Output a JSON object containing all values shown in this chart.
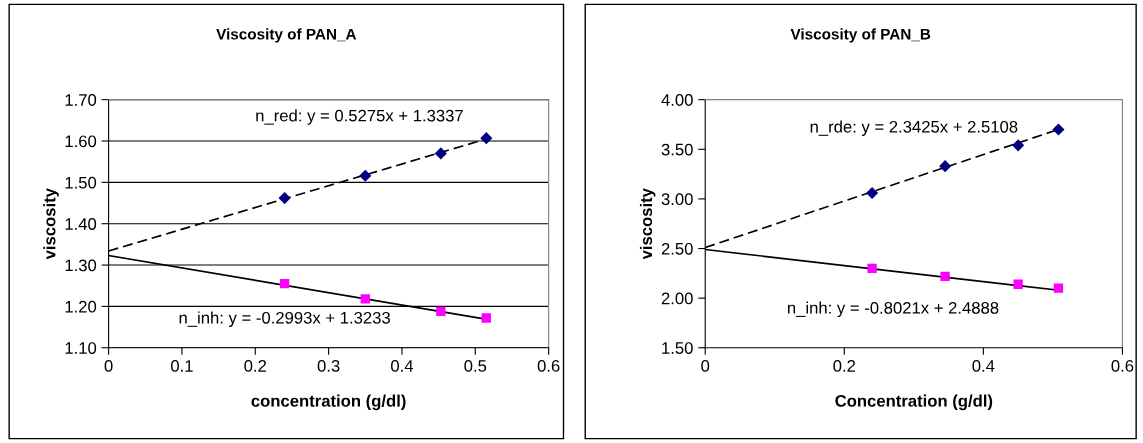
{
  "chart_data": [
    {
      "type": "scatter",
      "title": "Viscosity of PAN_A",
      "xlabel": "concentration (g/dl)",
      "ylabel": "viscosity",
      "xlim": [
        0,
        0.6
      ],
      "xticks": [
        0,
        0.1,
        0.2,
        0.3,
        0.4,
        0.5,
        0.6
      ],
      "ylim": [
        1.1,
        1.7
      ],
      "yticks": [
        {
          "value": 1.1,
          "label": "1.10"
        },
        {
          "value": 1.2,
          "label": "1.20"
        },
        {
          "value": 1.3,
          "label": "1.30"
        },
        {
          "value": 1.4,
          "label": "1.40"
        },
        {
          "value": 1.5,
          "label": "1.50"
        },
        {
          "value": 1.6,
          "label": "1.60"
        },
        {
          "value": 1.7,
          "label": "1.70"
        }
      ],
      "grid": "y",
      "series": [
        {
          "color": "#000080",
          "marker": "diamond",
          "x": [
            0.24,
            0.35,
            0.453,
            0.515
          ],
          "values": [
            1.462,
            1.516,
            1.57,
            1.607
          ]
        },
        {
          "color": "#ff00ff",
          "marker": "square",
          "x": [
            0.24,
            0.35,
            0.453,
            0.515
          ],
          "values": [
            1.255,
            1.218,
            1.188,
            1.172
          ]
        },
        {
          "type": "line",
          "color": "#000000",
          "line_style": "dashed",
          "x": [
            0,
            0.515
          ],
          "values": [
            1.334,
            1.605
          ]
        },
        {
          "type": "line",
          "color": "#000000",
          "line_style": "solid",
          "x": [
            0,
            0.515
          ],
          "values": [
            1.323,
            1.169
          ]
        }
      ],
      "annotations": [
        "n_red: y = 0.5275x + 1.3337",
        "n_inh: y = -0.2993x + 1.3233"
      ]
    },
    {
      "type": "scatter",
      "title": "Viscosity of PAN_B",
      "xlabel": "Concentration (g/dl)",
      "ylabel": "viscosity",
      "xlim": [
        0,
        0.6
      ],
      "xticks": [
        0,
        0.2,
        0.4,
        0.6
      ],
      "ylim": [
        1.5,
        4.0
      ],
      "yticks": [
        {
          "value": 1.5,
          "label": "1.50"
        },
        {
          "value": 2.0,
          "label": "2.00"
        },
        {
          "value": 2.5,
          "label": "2.50"
        },
        {
          "value": 3.0,
          "label": "3.00"
        },
        {
          "value": 3.5,
          "label": "3.50"
        },
        {
          "value": 4.0,
          "label": "4.00"
        }
      ],
      "grid": false,
      "series": [
        {
          "color": "#000080",
          "marker": "diamond",
          "x": [
            0.24,
            0.345,
            0.45,
            0.508
          ],
          "values": [
            3.06,
            3.33,
            3.54,
            3.7
          ]
        },
        {
          "color": "#ff00ff",
          "marker": "square",
          "x": [
            0.24,
            0.345,
            0.45,
            0.508
          ],
          "values": [
            2.3,
            2.22,
            2.14,
            2.1
          ]
        },
        {
          "type": "line",
          "color": "#000000",
          "line_style": "dashed",
          "x": [
            0,
            0.508
          ],
          "values": [
            2.51,
            3.7
          ]
        },
        {
          "type": "line",
          "color": "#000000",
          "line_style": "solid",
          "x": [
            0,
            0.508
          ],
          "values": [
            2.49,
            2.08
          ]
        }
      ],
      "annotations": [
        "n_rde: y = 2.3425x + 2.5108",
        "n_inh: y = -0.8021x + 2.4888"
      ]
    }
  ]
}
